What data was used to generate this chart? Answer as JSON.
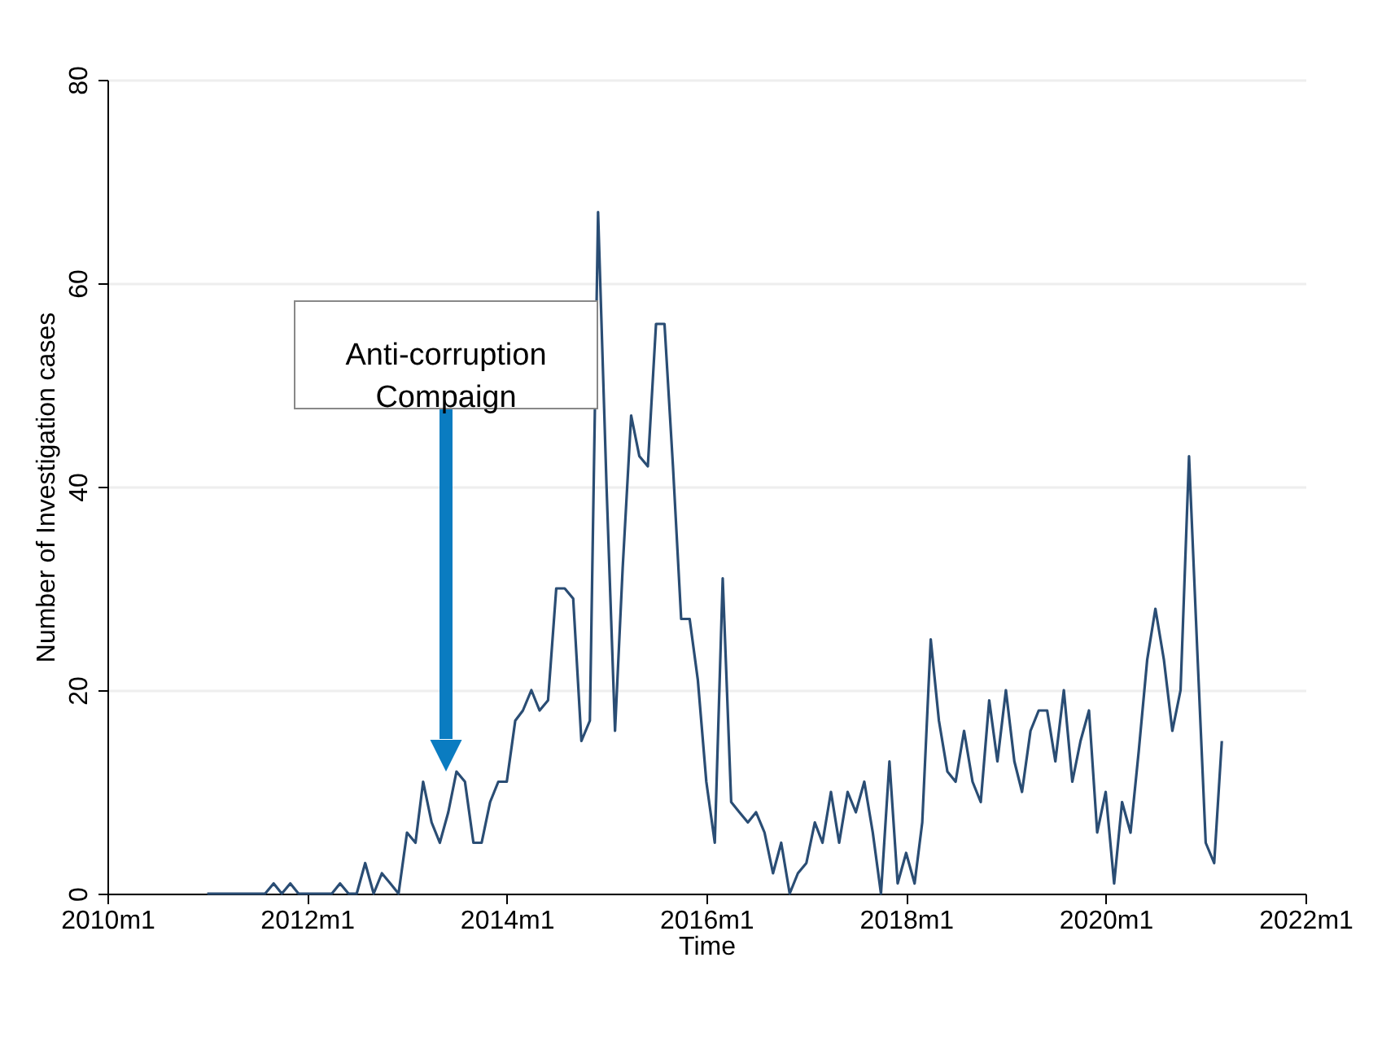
{
  "chart_data": {
    "type": "line",
    "xlabel": "Time",
    "ylabel": "Number of Investigation cases",
    "x": [
      "2011-01",
      "2011-02",
      "2011-03",
      "2011-04",
      "2011-05",
      "2011-06",
      "2011-07",
      "2011-08",
      "2011-09",
      "2011-10",
      "2011-11",
      "2011-12",
      "2012-01",
      "2012-02",
      "2012-03",
      "2012-04",
      "2012-05",
      "2012-06",
      "2012-07",
      "2012-08",
      "2012-09",
      "2012-10",
      "2012-11",
      "2012-12",
      "2013-01",
      "2013-02",
      "2013-03",
      "2013-04",
      "2013-05",
      "2013-06",
      "2013-07",
      "2013-08",
      "2013-09",
      "2013-10",
      "2013-11",
      "2013-12",
      "2014-01",
      "2014-02",
      "2014-03",
      "2014-04",
      "2014-05",
      "2014-06",
      "2014-07",
      "2014-08",
      "2014-09",
      "2014-10",
      "2014-11",
      "2014-12",
      "2015-01",
      "2015-02",
      "2015-03",
      "2015-04",
      "2015-05",
      "2015-06",
      "2015-07",
      "2015-08",
      "2015-09",
      "2015-10",
      "2015-11",
      "2015-12",
      "2016-01",
      "2016-02",
      "2016-03",
      "2016-04",
      "2016-05",
      "2016-06",
      "2016-07",
      "2016-08",
      "2016-09",
      "2016-10",
      "2016-11",
      "2016-12",
      "2017-01",
      "2017-02",
      "2017-03",
      "2017-04",
      "2017-05",
      "2017-06",
      "2017-07",
      "2017-08",
      "2017-09",
      "2017-10",
      "2017-11",
      "2017-12",
      "2018-01",
      "2018-02",
      "2018-03",
      "2018-04",
      "2018-05",
      "2018-06",
      "2018-07",
      "2018-08",
      "2018-09",
      "2018-10",
      "2018-11",
      "2018-12",
      "2019-01",
      "2019-02",
      "2019-03",
      "2019-04",
      "2019-05",
      "2019-06",
      "2019-07",
      "2019-08",
      "2019-09",
      "2019-10",
      "2019-11",
      "2019-12",
      "2020-01",
      "2020-02",
      "2020-03",
      "2020-04",
      "2020-05",
      "2020-06",
      "2020-07",
      "2020-08",
      "2020-09",
      "2020-10",
      "2020-11",
      "2020-12",
      "2021-01",
      "2021-02",
      "2021-03"
    ],
    "series": [
      {
        "color": "#2a4d74",
        "values": [
          0,
          0,
          0,
          0,
          0,
          0,
          0,
          0,
          1,
          0,
          1,
          0,
          0,
          0,
          0,
          0,
          1,
          0,
          0,
          3,
          0,
          2,
          1,
          0,
          6,
          5,
          11,
          7,
          5,
          8,
          12,
          11,
          5,
          5,
          9,
          11,
          11,
          17,
          18,
          20,
          18,
          19,
          30,
          30,
          29,
          15,
          17,
          67,
          40,
          16,
          32,
          47,
          43,
          42,
          56,
          56,
          42,
          27,
          27,
          21,
          11,
          5,
          31,
          9,
          8,
          7,
          8,
          6,
          2,
          5,
          0,
          2,
          3,
          7,
          5,
          10,
          5,
          10,
          8,
          11,
          6,
          0,
          13,
          1,
          4,
          1,
          7,
          25,
          17,
          12,
          11,
          16,
          11,
          9,
          19,
          13,
          20,
          13,
          10,
          16,
          18,
          18,
          13,
          20,
          11,
          15,
          18,
          6,
          10,
          1,
          9,
          6,
          14,
          23,
          28,
          23,
          16,
          20,
          43,
          24,
          5,
          3,
          15
        ]
      }
    ],
    "xlim": [
      "2010-01",
      "2022-01"
    ],
    "xticks": [
      {
        "value": "2010-01",
        "label": "2010m1"
      },
      {
        "value": "2012-01",
        "label": "2012m1"
      },
      {
        "value": "2014-01",
        "label": "2014m1"
      },
      {
        "value": "2016-01",
        "label": "2016m1"
      },
      {
        "value": "2018-01",
        "label": "2018m1"
      },
      {
        "value": "2020-01",
        "label": "2020m1"
      },
      {
        "value": "2022-01",
        "label": "2022m1"
      }
    ],
    "ylim": [
      0,
      80
    ],
    "yticks": [
      0,
      20,
      40,
      60,
      80
    ],
    "grid": "y",
    "annotations": [
      "Anti-corruption\nCompaign"
    ]
  }
}
